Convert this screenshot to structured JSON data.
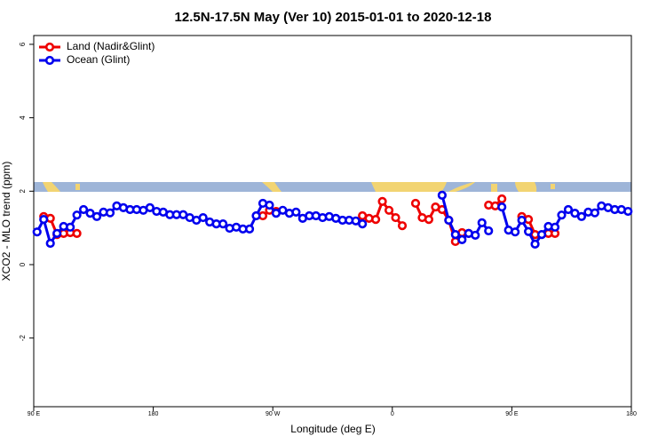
{
  "chart_data": {
    "type": "line",
    "title": "12.5N-17.5N May (Ver 10)   2015-01-01 to 2020-12-18",
    "xlabel": "Longitude (deg E)",
    "ylabel": "XCO2 - MLO trend (ppm)",
    "xlim": [
      90,
      540
    ],
    "xticks": [
      {
        "value": 90,
        "label": "90 E"
      },
      180,
      {
        "value": 270,
        "label": "90 W"
      },
      {
        "value": 360,
        "label": "0"
      },
      {
        "value": 450,
        "label": "90 E"
      },
      {
        "value": 540,
        "label": "180"
      }
    ],
    "ylim": [
      -3.87,
      6.24
    ],
    "yticks": [
      -2,
      0,
      2,
      4,
      6
    ],
    "legend": "top-left",
    "x": [
      92.5,
      97.5,
      102.5,
      107.5,
      112.5,
      117.5,
      122.5,
      127.5,
      132.5,
      137.5,
      142.5,
      147.5,
      152.5,
      157.5,
      162.5,
      167.5,
      172.5,
      177.5,
      182.5,
      187.5,
      192.5,
      197.5,
      202.5,
      207.5,
      212.5,
      217.5,
      222.5,
      227.5,
      232.5,
      237.5,
      242.5,
      247.5,
      252.5,
      257.5,
      262.5,
      267.5,
      272.5,
      277.5,
      282.5,
      287.5,
      292.5,
      297.5,
      302.5,
      307.5,
      312.5,
      317.5,
      322.5,
      327.5,
      332.5,
      337.5,
      342.5,
      347.5,
      352.5,
      357.5,
      362.5,
      367.5,
      372.5,
      377.5,
      382.5,
      387.5,
      392.5,
      397.5,
      402.5,
      407.5,
      412.5,
      417.5,
      422.5,
      427.5,
      432.5,
      437.5,
      442.5,
      447.5,
      452.5,
      457.5,
      462.5,
      467.5,
      472.5,
      477.5,
      482.5,
      487.5,
      492.5,
      497.5,
      502.5,
      507.5,
      512.5,
      517.5,
      522.5,
      527.5,
      532.5,
      537.5
    ],
    "series": [
      {
        "name": "Land (Nadir&Glint)",
        "color": "#ee0000",
        "values": [
          null,
          1.31,
          1.26,
          0.82,
          0.85,
          0.87,
          0.85,
          null,
          null,
          null,
          null,
          null,
          null,
          null,
          null,
          null,
          null,
          null,
          null,
          null,
          null,
          null,
          null,
          null,
          null,
          null,
          null,
          null,
          null,
          null,
          null,
          null,
          null,
          null,
          1.33,
          1.48,
          1.45,
          null,
          null,
          null,
          null,
          null,
          null,
          null,
          null,
          null,
          null,
          null,
          null,
          1.33,
          1.26,
          1.23,
          1.72,
          1.48,
          1.28,
          1.06,
          null,
          1.67,
          1.28,
          1.23,
          1.57,
          1.5,
          1.21,
          0.63,
          0.87,
          0.85,
          null,
          null,
          1.62,
          1.6,
          1.79,
          null,
          null,
          1.31,
          1.23,
          0.82,
          null,
          0.85,
          0.85,
          null,
          null,
          null,
          null,
          null,
          null,
          null,
          null,
          null,
          null,
          null
        ]
      },
      {
        "name": "Ocean (Glint)",
        "color": "#0000ee",
        "values": [
          0.89,
          1.23,
          0.58,
          0.85,
          1.04,
          1.02,
          1.35,
          1.5,
          1.4,
          1.31,
          1.43,
          1.41,
          1.6,
          1.55,
          1.5,
          1.5,
          1.48,
          1.55,
          1.45,
          1.43,
          1.36,
          1.36,
          1.36,
          1.28,
          1.21,
          1.28,
          1.16,
          1.11,
          1.11,
          0.99,
          1.02,
          0.97,
          0.97,
          1.33,
          1.67,
          1.62,
          1.4,
          1.48,
          1.4,
          1.43,
          1.26,
          1.33,
          1.33,
          1.28,
          1.31,
          1.26,
          1.21,
          1.21,
          1.19,
          1.11,
          null,
          null,
          null,
          null,
          null,
          null,
          null,
          null,
          null,
          null,
          null,
          1.89,
          1.21,
          0.82,
          0.68,
          0.85,
          0.8,
          1.14,
          0.92,
          null,
          1.57,
          0.94,
          0.89,
          1.21,
          0.9,
          0.56,
          0.82,
          1.04,
          1.02,
          1.35,
          1.5,
          1.4,
          1.31,
          1.43,
          1.41,
          1.6,
          1.55,
          1.5,
          1.5,
          1.45
        ]
      }
    ]
  }
}
